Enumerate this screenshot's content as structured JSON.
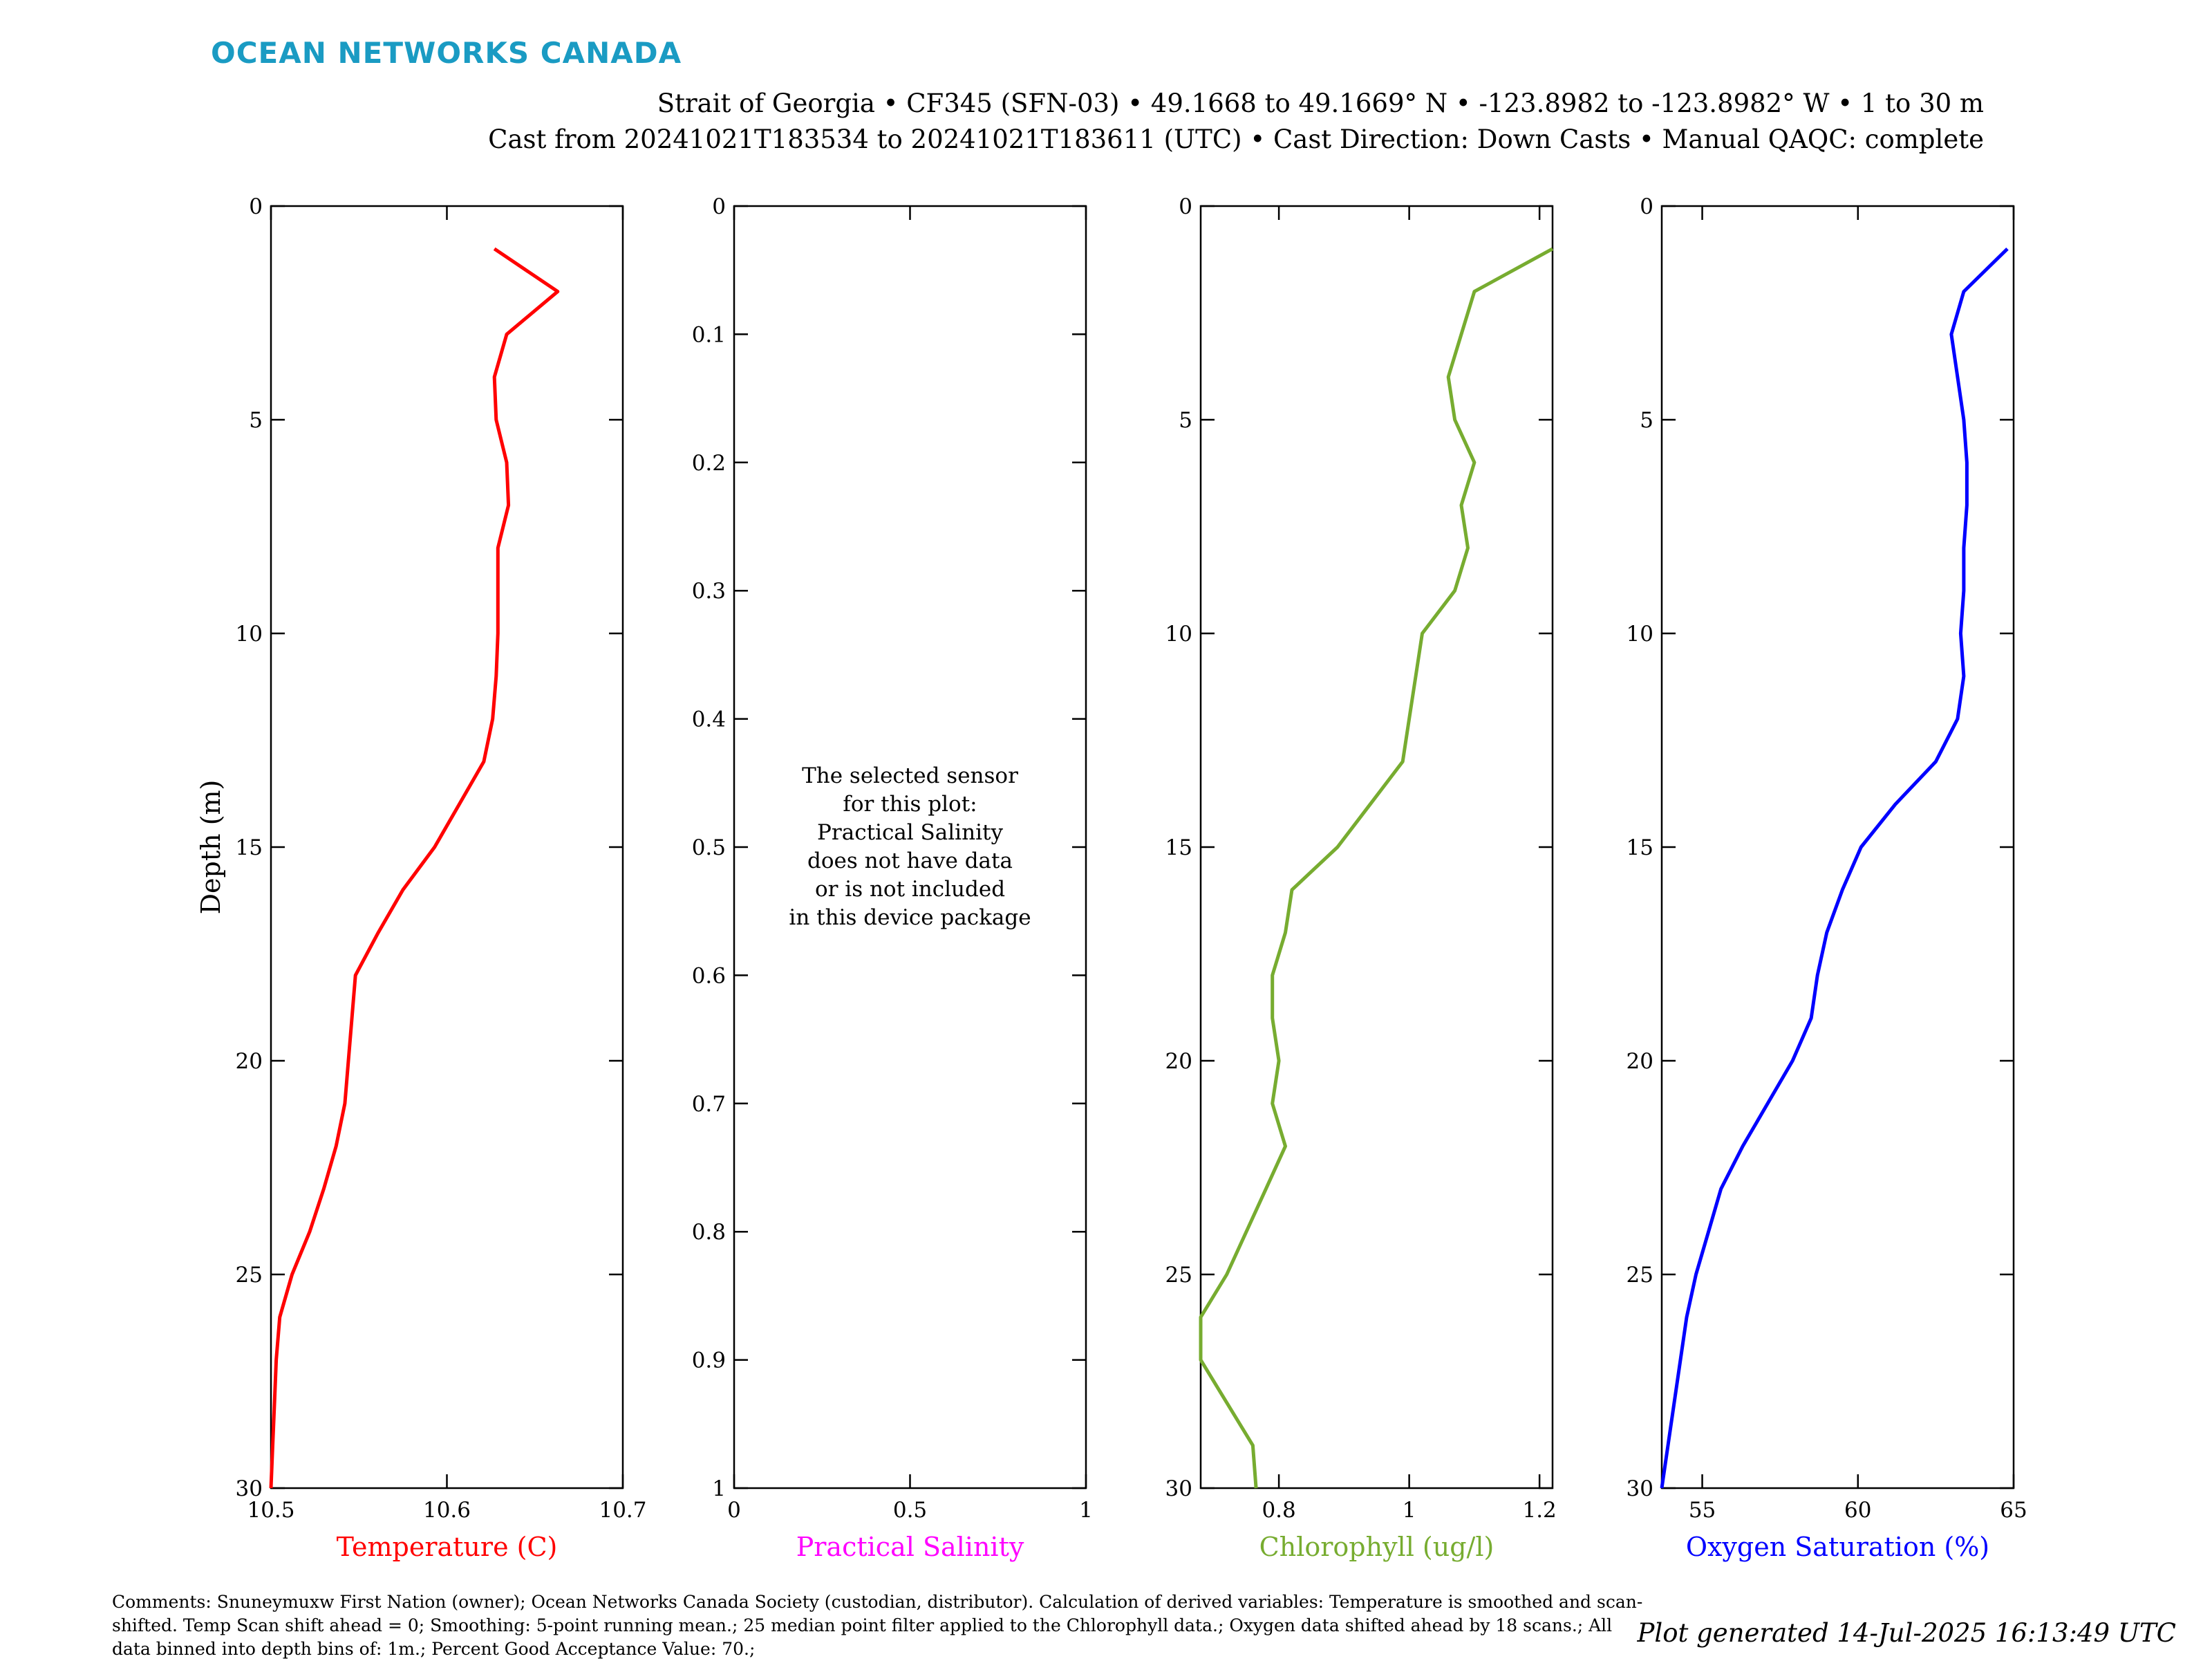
{
  "brand": "OCEAN NETWORKS CANADA",
  "header": {
    "line1": "Strait of Georgia • CF345 (SFN-03) • 49.1668 to 49.1669° N • -123.8982 to -123.8982° W • 1 to 30 m",
    "line2": "Cast from 20241021T183534 to 20241021T183611 (UTC) • Cast Direction: Down Casts • Manual QAQC: complete"
  },
  "footer": {
    "comments": "Comments: Snuneymuxw First Nation (owner); Ocean Networks Canada Society (custodian, distributor). Calculation of derived variables: Temperature is smoothed and scan-shifted. Temp Scan shift ahead = 0; Smoothing: 5-point running mean.; 25 median point filter applied to the Chlorophyll data.; Oxygen data shifted ahead by 18 scans.; All data binned into depth bins of: 1m.; Percent Good Acceptance Value: 70.;",
    "generated": "Plot generated 14-Jul-2025 16:13:49 UTC"
  },
  "chart_data": [
    {
      "type": "line",
      "id": "temperature",
      "xlabel": "Temperature (C)",
      "ylabel": "Depth (m)",
      "color": "#ff0000",
      "xlim": [
        10.5,
        10.7
      ],
      "xticks": [
        "10.5",
        "10.6",
        "10.7"
      ],
      "ylim": [
        0,
        30
      ],
      "yticks": [
        "0",
        "5",
        "10",
        "15",
        "20",
        "25",
        "30"
      ],
      "y_reversed": true,
      "depth": [
        1,
        2,
        3,
        4,
        5,
        6,
        7,
        8,
        9,
        10,
        11,
        12,
        13,
        14,
        15,
        16,
        17,
        18,
        19,
        20,
        21,
        22,
        23,
        24,
        25,
        26,
        27,
        28,
        29,
        30
      ],
      "values": [
        10.627,
        10.663,
        10.634,
        10.627,
        10.628,
        10.634,
        10.635,
        10.629,
        10.629,
        10.629,
        10.628,
        10.626,
        10.621,
        10.607,
        10.593,
        10.575,
        10.561,
        10.548,
        10.546,
        10.544,
        10.542,
        10.537,
        10.53,
        10.522,
        10.512,
        10.505,
        10.503,
        10.502,
        10.501,
        10.5
      ]
    },
    {
      "type": "line",
      "id": "salinity",
      "xlabel": "Practical Salinity",
      "ylabel": "",
      "color": "#ff00ff",
      "xlim": [
        0,
        1
      ],
      "xticks": [
        "0",
        "0.5",
        "1"
      ],
      "ylim": [
        0,
        1
      ],
      "yticks": [
        "0",
        "0.1",
        "0.2",
        "0.3",
        "0.4",
        "0.5",
        "0.6",
        "0.7",
        "0.8",
        "0.9",
        "1"
      ],
      "y_reversed": true,
      "depth": [],
      "values": [],
      "message": [
        "The selected sensor",
        "for this plot:",
        "Practical Salinity",
        "does not have data",
        "or is not included",
        "in this device package"
      ]
    },
    {
      "type": "line",
      "id": "chlorophyll",
      "xlabel": "Chlorophyll (ug/l)",
      "ylabel": "",
      "color": "#77ac30",
      "xlim": [
        0.68,
        1.22
      ],
      "xticks": [
        "0.8",
        "1",
        "1.2"
      ],
      "xtick_values": [
        0.8,
        1.0,
        1.2
      ],
      "ylim": [
        0,
        30
      ],
      "yticks": [
        "0",
        "5",
        "10",
        "15",
        "20",
        "25",
        "30"
      ],
      "y_reversed": true,
      "depth": [
        1,
        2,
        3,
        4,
        5,
        6,
        7,
        8,
        9,
        10,
        11,
        12,
        13,
        14,
        15,
        16,
        17,
        18,
        19,
        20,
        21,
        22,
        23,
        24,
        25,
        26,
        27,
        28,
        29,
        30
      ],
      "values": [
        1.22,
        1.1,
        1.08,
        1.06,
        1.07,
        1.1,
        1.08,
        1.09,
        1.07,
        1.02,
        1.01,
        1.0,
        0.99,
        0.94,
        0.89,
        0.82,
        0.81,
        0.79,
        0.79,
        0.8,
        0.79,
        0.81,
        0.78,
        0.75,
        0.72,
        0.68,
        0.68,
        0.72,
        0.76,
        0.765
      ]
    },
    {
      "type": "line",
      "id": "oxygen",
      "xlabel": "Oxygen Saturation (%)",
      "ylabel": "",
      "color": "#0000ff",
      "xlim": [
        53.7,
        65
      ],
      "xticks": [
        "55",
        "60",
        "65"
      ],
      "xtick_values": [
        55,
        60,
        65
      ],
      "ylim": [
        0,
        30
      ],
      "yticks": [
        "0",
        "5",
        "10",
        "15",
        "20",
        "25",
        "30"
      ],
      "y_reversed": true,
      "depth": [
        1,
        2,
        3,
        4,
        5,
        6,
        7,
        8,
        9,
        10,
        11,
        12,
        13,
        14,
        15,
        16,
        17,
        18,
        19,
        20,
        21,
        22,
        23,
        24,
        25,
        26,
        27,
        28,
        29,
        30
      ],
      "values": [
        64.8,
        63.4,
        63.0,
        63.2,
        63.4,
        63.5,
        63.5,
        63.4,
        63.4,
        63.3,
        63.4,
        63.2,
        62.5,
        61.2,
        60.1,
        59.5,
        59.0,
        58.7,
        58.5,
        57.9,
        57.1,
        56.3,
        55.6,
        55.2,
        54.8,
        54.5,
        54.3,
        54.1,
        53.9,
        53.7
      ]
    }
  ]
}
